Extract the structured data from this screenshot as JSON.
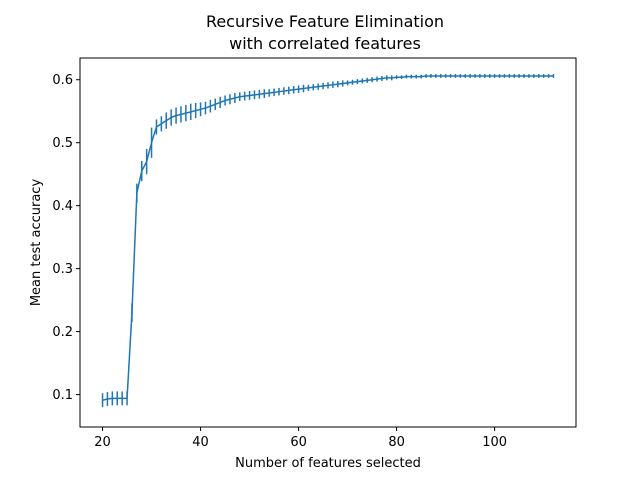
{
  "chart_data": {
    "type": "line",
    "title_lines": [
      "Recursive Feature Elimination",
      "with correlated features"
    ],
    "xlabel": "Number of features selected",
    "ylabel": "Mean test accuracy",
    "xlim": [
      15.4,
      116.6
    ],
    "ylim": [
      0.0485,
      0.6345
    ],
    "xticks": [
      20,
      40,
      60,
      80,
      100
    ],
    "xtick_labels": [
      "20",
      "40",
      "60",
      "80",
      "100"
    ],
    "yticks": [
      0.1,
      0.2,
      0.3,
      0.4,
      0.5,
      0.6
    ],
    "ytick_labels": [
      "0.1",
      "0.2",
      "0.3",
      "0.4",
      "0.5",
      "0.6"
    ],
    "grid": false,
    "line_color": "#1f77b4",
    "x": [
      20,
      21,
      22,
      23,
      24,
      25,
      26,
      27,
      28,
      29,
      30,
      31,
      32,
      33,
      34,
      35,
      36,
      37,
      38,
      39,
      40,
      41,
      42,
      43,
      44,
      45,
      46,
      47,
      48,
      49,
      50,
      51,
      52,
      53,
      54,
      55,
      56,
      57,
      58,
      59,
      60,
      61,
      62,
      63,
      64,
      65,
      66,
      67,
      68,
      69,
      70,
      71,
      72,
      73,
      74,
      75,
      76,
      77,
      78,
      79,
      80,
      81,
      82,
      83,
      84,
      85,
      86,
      87,
      88,
      89,
      90,
      91,
      92,
      93,
      94,
      95,
      96,
      97,
      98,
      99,
      100,
      101,
      102,
      103,
      104,
      105,
      106,
      107,
      108,
      109,
      110,
      111,
      112
    ],
    "y": [
      0.091,
      0.093,
      0.094,
      0.094,
      0.094,
      0.094,
      0.23,
      0.42,
      0.455,
      0.47,
      0.5,
      0.525,
      0.53,
      0.535,
      0.54,
      0.543,
      0.545,
      0.547,
      0.549,
      0.551,
      0.553,
      0.555,
      0.558,
      0.561,
      0.564,
      0.567,
      0.569,
      0.571,
      0.573,
      0.574,
      0.575,
      0.576,
      0.577,
      0.578,
      0.579,
      0.58,
      0.581,
      0.582,
      0.583,
      0.584,
      0.585,
      0.586,
      0.587,
      0.588,
      0.589,
      0.59,
      0.591,
      0.592,
      0.593,
      0.594,
      0.595,
      0.596,
      0.597,
      0.598,
      0.599,
      0.6,
      0.601,
      0.602,
      0.603,
      0.603,
      0.604,
      0.604,
      0.605,
      0.605,
      0.605,
      0.605,
      0.606,
      0.606,
      0.606,
      0.606,
      0.606,
      0.606,
      0.606,
      0.606,
      0.606,
      0.606,
      0.606,
      0.606,
      0.606,
      0.606,
      0.606,
      0.606,
      0.606,
      0.606,
      0.606,
      0.606,
      0.606,
      0.606,
      0.606,
      0.606,
      0.606,
      0.606,
      0.606
    ],
    "yerr": [
      0.011,
      0.011,
      0.011,
      0.011,
      0.011,
      0.011,
      0.015,
      0.015,
      0.016,
      0.02,
      0.024,
      0.012,
      0.012,
      0.013,
      0.013,
      0.013,
      0.013,
      0.013,
      0.013,
      0.012,
      0.011,
      0.01,
      0.01,
      0.009,
      0.009,
      0.008,
      0.008,
      0.008,
      0.007,
      0.007,
      0.007,
      0.007,
      0.007,
      0.007,
      0.006,
      0.006,
      0.006,
      0.006,
      0.006,
      0.006,
      0.006,
      0.006,
      0.005,
      0.005,
      0.005,
      0.005,
      0.005,
      0.005,
      0.005,
      0.005,
      0.004,
      0.004,
      0.004,
      0.004,
      0.004,
      0.004,
      0.004,
      0.004,
      0.004,
      0.004,
      0.003,
      0.003,
      0.003,
      0.003,
      0.003,
      0.003,
      0.003,
      0.003,
      0.003,
      0.003,
      0.003,
      0.003,
      0.003,
      0.003,
      0.003,
      0.003,
      0.003,
      0.003,
      0.003,
      0.003,
      0.003,
      0.003,
      0.003,
      0.003,
      0.003,
      0.003,
      0.003,
      0.003,
      0.003,
      0.003,
      0.003,
      0.003,
      0.003
    ]
  }
}
